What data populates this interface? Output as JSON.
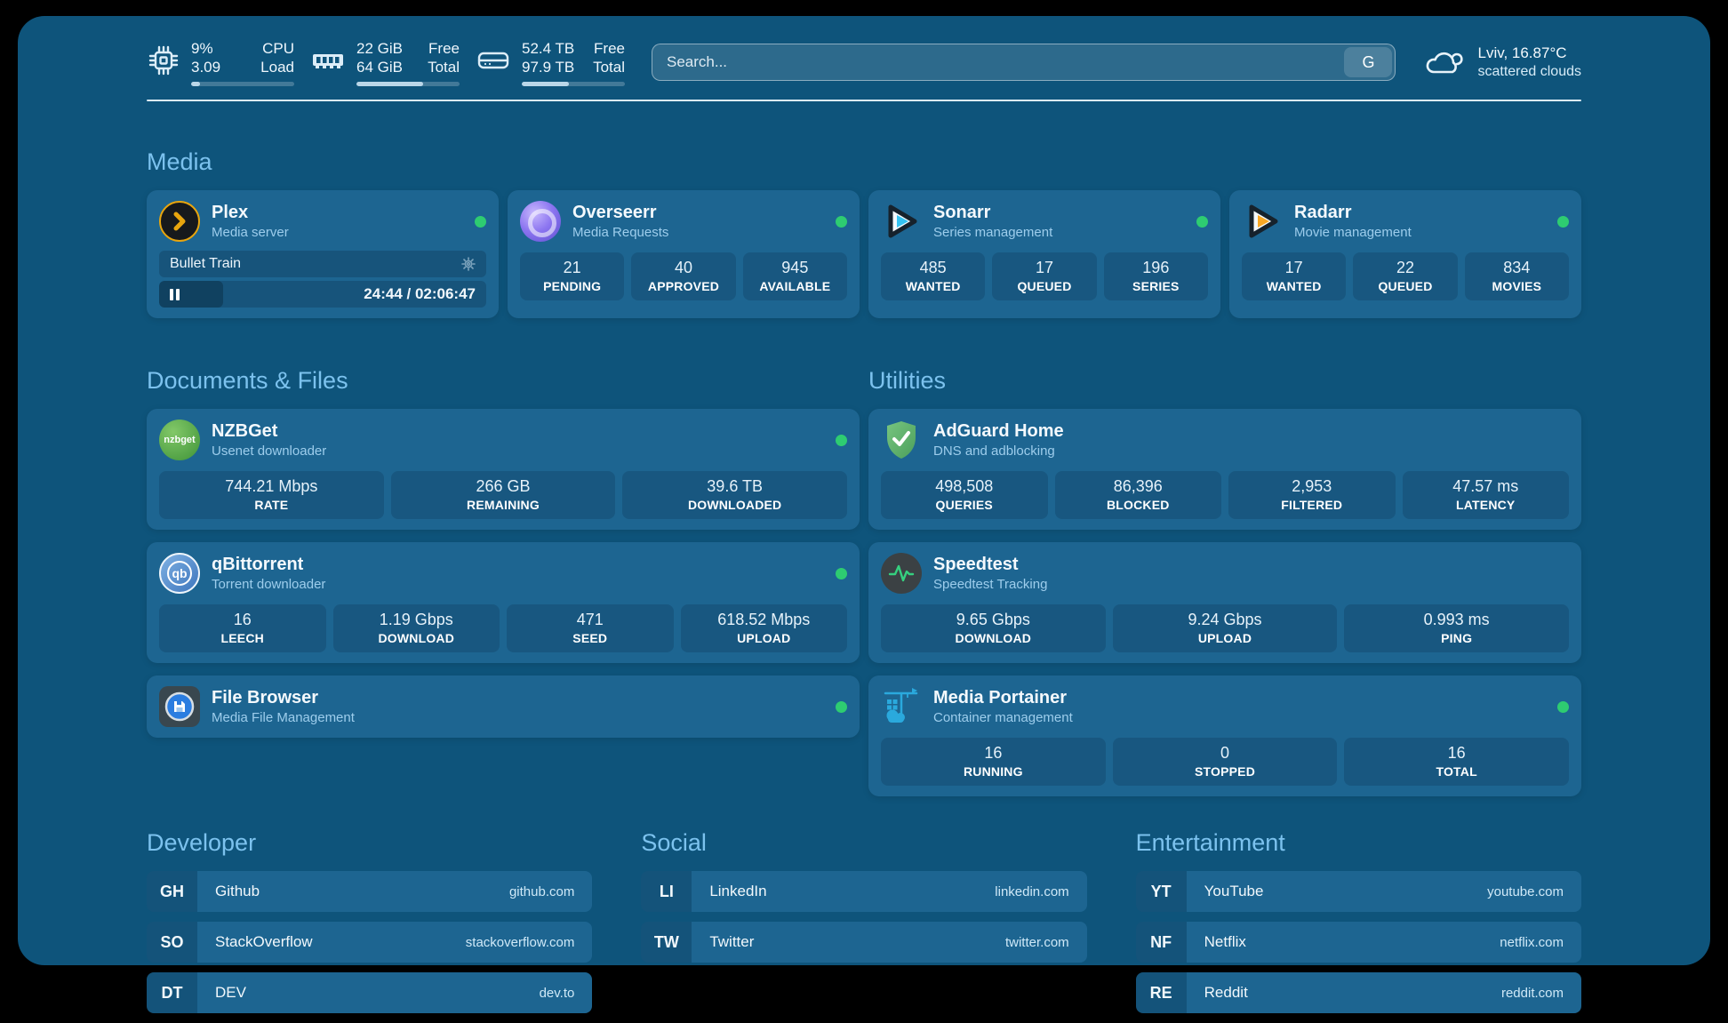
{
  "colors": {
    "background": "#000000",
    "dashboard": "#0e547b",
    "card": "#1d6591",
    "heading": "#7cc2ee",
    "status_online": "#2ecc71"
  },
  "topbar": {
    "stats": [
      {
        "icon": "cpu",
        "rows": [
          {
            "value": "9%",
            "label": "CPU"
          },
          {
            "value": "3.09",
            "label": "Load"
          }
        ],
        "progress_pct": 9
      },
      {
        "icon": "memory",
        "rows": [
          {
            "value": "22 GiB",
            "label": "Free"
          },
          {
            "value": "64 GiB",
            "label": "Total"
          }
        ],
        "progress_pct": 65
      },
      {
        "icon": "disk",
        "rows": [
          {
            "value": "52.4 TB",
            "label": "Free"
          },
          {
            "value": "97.9 TB",
            "label": "Total"
          }
        ],
        "progress_pct": 46
      }
    ],
    "search": {
      "placeholder": "Search...",
      "engine": "G"
    },
    "weather": {
      "title": "Lviv, 16.87°C",
      "subtitle": "scattered clouds"
    }
  },
  "sections": {
    "media": {
      "title": "Media",
      "apps": [
        {
          "name": "Plex",
          "subtitle": "Media server",
          "online": true,
          "player": {
            "title": "Bullet Train",
            "time": "24:44 / 02:06:47",
            "progress_pct": 19.5
          }
        },
        {
          "name": "Overseerr",
          "subtitle": "Media Requests",
          "online": true,
          "stats": [
            {
              "value": "21",
              "label": "PENDING"
            },
            {
              "value": "40",
              "label": "APPROVED"
            },
            {
              "value": "945",
              "label": "AVAILABLE"
            }
          ]
        },
        {
          "name": "Sonarr",
          "subtitle": "Series management",
          "online": true,
          "stats": [
            {
              "value": "485",
              "label": "WANTED"
            },
            {
              "value": "17",
              "label": "QUEUED"
            },
            {
              "value": "196",
              "label": "SERIES"
            }
          ]
        },
        {
          "name": "Radarr",
          "subtitle": "Movie management",
          "online": true,
          "stats": [
            {
              "value": "17",
              "label": "WANTED"
            },
            {
              "value": "22",
              "label": "QUEUED"
            },
            {
              "value": "834",
              "label": "MOVIES"
            }
          ]
        }
      ]
    },
    "documents": {
      "title": "Documents & Files",
      "apps": [
        {
          "name": "NZBGet",
          "subtitle": "Usenet downloader",
          "online": true,
          "stats": [
            {
              "value": "744.21 Mbps",
              "label": "RATE"
            },
            {
              "value": "266 GB",
              "label": "REMAINING"
            },
            {
              "value": "39.6 TB",
              "label": "DOWNLOADED"
            }
          ]
        },
        {
          "name": "qBittorrent",
          "subtitle": "Torrent downloader",
          "online": true,
          "stats": [
            {
              "value": "16",
              "label": "LEECH"
            },
            {
              "value": "1.19 Gbps",
              "label": "DOWNLOAD"
            },
            {
              "value": "471",
              "label": "SEED"
            },
            {
              "value": "618.52 Mbps",
              "label": "UPLOAD"
            }
          ]
        },
        {
          "name": "File Browser",
          "subtitle": "Media File Management",
          "online": true
        }
      ]
    },
    "utilities": {
      "title": "Utilities",
      "apps": [
        {
          "name": "AdGuard Home",
          "subtitle": "DNS and adblocking",
          "online": false,
          "stats": [
            {
              "value": "498,508",
              "label": "QUERIES"
            },
            {
              "value": "86,396",
              "label": "BLOCKED"
            },
            {
              "value": "2,953",
              "label": "FILTERED"
            },
            {
              "value": "47.57 ms",
              "label": "LATENCY"
            }
          ]
        },
        {
          "name": "Speedtest",
          "subtitle": "Speedtest Tracking",
          "online": false,
          "stats": [
            {
              "value": "9.65 Gbps",
              "label": "DOWNLOAD"
            },
            {
              "value": "9.24 Gbps",
              "label": "UPLOAD"
            },
            {
              "value": "0.993 ms",
              "label": "PING"
            }
          ]
        },
        {
          "name": "Media Portainer",
          "subtitle": "Container management",
          "online": true,
          "stats": [
            {
              "value": "16",
              "label": "RUNNING"
            },
            {
              "value": "0",
              "label": "STOPPED"
            },
            {
              "value": "16",
              "label": "TOTAL"
            }
          ]
        }
      ]
    },
    "bookmarks": [
      {
        "title": "Developer",
        "items": [
          {
            "abbr": "GH",
            "name": "Github",
            "url": "github.com"
          },
          {
            "abbr": "SO",
            "name": "StackOverflow",
            "url": "stackoverflow.com"
          },
          {
            "abbr": "DT",
            "name": "DEV",
            "url": "dev.to"
          }
        ]
      },
      {
        "title": "Social",
        "items": [
          {
            "abbr": "LI",
            "name": "LinkedIn",
            "url": "linkedin.com"
          },
          {
            "abbr": "TW",
            "name": "Twitter",
            "url": "twitter.com"
          }
        ]
      },
      {
        "title": "Entertainment",
        "items": [
          {
            "abbr": "YT",
            "name": "YouTube",
            "url": "youtube.com"
          },
          {
            "abbr": "NF",
            "name": "Netflix",
            "url": "netflix.com"
          },
          {
            "abbr": "RE",
            "name": "Reddit",
            "url": "reddit.com"
          }
        ]
      }
    ]
  }
}
